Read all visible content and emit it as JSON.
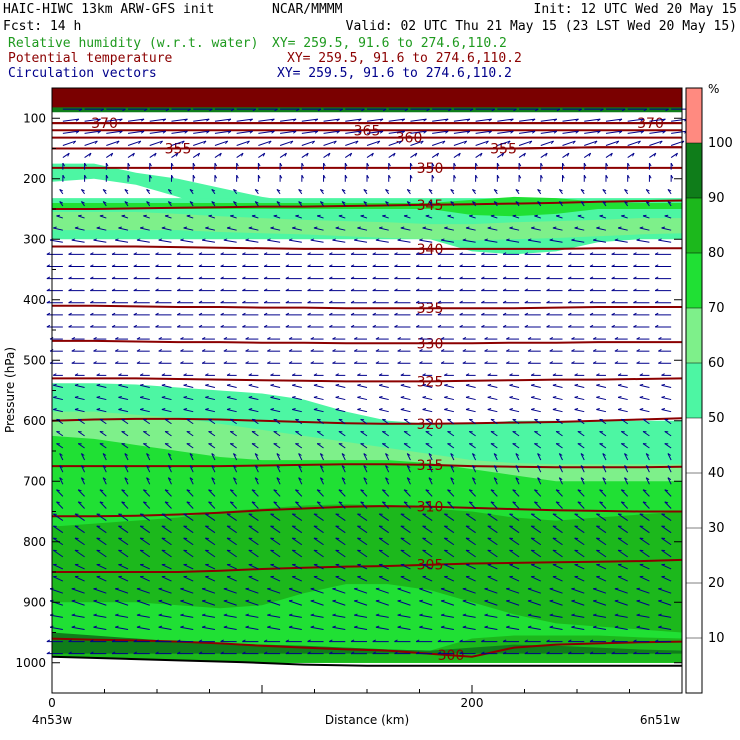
{
  "header": {
    "model": "HAIC-HIWC 13km ARW-GFS init",
    "center": "NCAR/MMMM",
    "init": "Init: 12 UTC Wed 20 May 15",
    "fcst": "Fcst:   14 h",
    "valid": "Valid: 02 UTC Thu 21 May 15 (23 LST Wed 20 May 15)",
    "fields": [
      {
        "name": "Relative humidity (w.r.t. water)",
        "xy": "XY= 259.5, 91.6 to 274.6,110.2",
        "color": "#1e9a1e"
      },
      {
        "name": "Potential temperature",
        "xy": "XY= 259.5, 91.6 to 274.6,110.2",
        "color": "#8b0000"
      },
      {
        "name": "Circulation vectors",
        "xy": "XY= 259.5, 91.6 to 274.6,110.2",
        "color": "#00008b"
      }
    ]
  },
  "chart_data": {
    "type": "cross-section",
    "xlabel": "Distance (km)",
    "ylabel": "Pressure (hPa)",
    "x_range_km": [
      0,
      300
    ],
    "x_ticks": [
      0,
      200
    ],
    "x_end_labels": {
      "left": "4n53w",
      "right": "6n51w"
    },
    "y_range_hpa": [
      50,
      1050
    ],
    "y_ticks": [
      100,
      200,
      300,
      400,
      500,
      600,
      700,
      800,
      900,
      1000
    ],
    "y_scale": "linear-pressure",
    "surface_hpa": [
      990,
      993,
      996,
      999,
      1003,
      1005,
      1005,
      1005,
      1005,
      1005,
      1005
    ],
    "rh_colorbar": {
      "unit": "%",
      "levels": [
        10,
        20,
        30,
        40,
        50,
        60,
        70,
        80,
        90,
        100
      ],
      "bins": [
        {
          "from": 50,
          "to": 60,
          "color": "#4df6a3"
        },
        {
          "from": 60,
          "to": 70,
          "color": "#7ef08a"
        },
        {
          "from": 70,
          "to": 80,
          "color": "#20e034"
        },
        {
          "from": 80,
          "to": 90,
          "color": "#1cb81c"
        },
        {
          "from": 90,
          "to": 100,
          "color": "#0f7d1a"
        },
        {
          "from": 100,
          "to": 110,
          "color": "#ff8a80"
        }
      ]
    },
    "rh_bands": [
      {
        "rh": 55,
        "top": [
          175,
          175,
          190,
          200,
          215,
          230,
          240,
          245,
          250,
          250,
          250,
          250,
          250,
          250,
          250,
          250
        ],
        "bottom": [
          205,
          200,
          210,
          230,
          255,
          270,
          280,
          285,
          290,
          300,
          320,
          325,
          320,
          305,
          300,
          295
        ]
      },
      {
        "rh": 55,
        "top": [
          232,
          232,
          232,
          232,
          232,
          232,
          232,
          232,
          232,
          232,
          232,
          232,
          232,
          232,
          232,
          232
        ],
        "bottom": [
          300,
          300,
          300,
          300,
          300,
          300,
          300,
          300,
          300,
          300,
          300,
          300,
          300,
          300,
          300,
          300
        ]
      },
      {
        "rh": 65,
        "top": [
          255,
          255,
          255,
          258,
          262,
          265,
          268,
          270,
          272,
          275,
          275,
          272,
          270,
          268,
          265,
          265
        ],
        "bottom": [
          285,
          285,
          285,
          285,
          288,
          290,
          292,
          295,
          298,
          300,
          302,
          300,
          298,
          295,
          292,
          290
        ]
      },
      {
        "rh": 75,
        "top": [
          240,
          240,
          240,
          240,
          240,
          240,
          240,
          240,
          240,
          240,
          235,
          230,
          232,
          238,
          240,
          240
        ],
        "bottom": [
          250,
          250,
          250,
          250,
          250,
          250,
          250,
          250,
          250,
          250,
          260,
          262,
          258,
          250,
          250,
          250
        ]
      },
      {
        "rh": 55,
        "top": [
          538,
          538,
          540,
          545,
          550,
          555,
          565,
          585,
          600,
          605,
          605,
          600,
          600,
          600,
          600,
          600
        ],
        "bottom": [
          1000,
          1000,
          1000,
          1000,
          1000,
          1000,
          1000,
          1000,
          1000,
          1000,
          1000,
          1000,
          1000,
          1000,
          1000,
          1000
        ]
      },
      {
        "rh": 65,
        "top": [
          585,
          585,
          590,
          595,
          605,
          615,
          625,
          635,
          645,
          655,
          665,
          670,
          672,
          672,
          672,
          672
        ],
        "bottom": [
          1000,
          1000,
          1000,
          1000,
          1000,
          1000,
          1000,
          1000,
          1000,
          1000,
          1000,
          1000,
          1000,
          1000,
          1000,
          1000
        ]
      },
      {
        "rh": 75,
        "top": [
          625,
          630,
          640,
          650,
          660,
          665,
          665,
          665,
          665,
          670,
          680,
          690,
          700,
          700,
          700,
          700
        ],
        "bottom": [
          1000,
          1000,
          1000,
          1000,
          1000,
          1000,
          1000,
          1000,
          1000,
          1000,
          1000,
          1000,
          1000,
          1000,
          1000,
          1000
        ]
      },
      {
        "rh": 85,
        "top": [
          775,
          770,
          765,
          760,
          750,
          745,
          740,
          738,
          740,
          745,
          750,
          760,
          765,
          760,
          755,
          750
        ],
        "bottom": [
          1000,
          1000,
          1000,
          1000,
          1000,
          1000,
          1000,
          1000,
          1000,
          1000,
          1000,
          1000,
          1000,
          1000,
          1000,
          1000
        ]
      },
      {
        "rh": 75,
        "top": [
          900,
          900,
          900,
          905,
          910,
          905,
          885,
          870,
          870,
          880,
          900,
          920,
          935,
          940,
          945,
          950
        ],
        "bottom": [
          1000,
          1000,
          1000,
          1000,
          1000,
          1000,
          1000,
          1000,
          1000,
          1000,
          1000,
          1000,
          1000,
          1000,
          1000,
          1000
        ]
      },
      {
        "rh": 85,
        "top": [
          965,
          965,
          965,
          965,
          968,
          970,
          972,
          975,
          978,
          980,
          960,
          955,
          955,
          955,
          958,
          960
        ],
        "bottom": [
          1000,
          1000,
          1000,
          1000,
          1000,
          1000,
          1000,
          1000,
          1000,
          1000,
          1000,
          1000,
          1000,
          1000,
          1000,
          1000
        ]
      },
      {
        "rh": 95,
        "top": [
          950,
          955,
          960,
          965,
          968,
          970,
          972,
          975,
          978,
          980,
          975,
          970,
          972,
          975,
          978,
          980
        ],
        "bottom": [
          985,
          985,
          985,
          985,
          985,
          985,
          985,
          985,
          985,
          985,
          985,
          985,
          985,
          985,
          985,
          985
        ]
      },
      {
        "rh": 95,
        "top": [
          50,
          50,
          50,
          50,
          50,
          50,
          50,
          50,
          50,
          50,
          50,
          50,
          50,
          50,
          50,
          50
        ],
        "bottom": [
          90,
          90,
          90,
          90,
          90,
          90,
          90,
          90,
          90,
          90,
          90,
          90,
          90,
          90,
          90,
          90
        ]
      }
    ],
    "theta_contours": [
      {
        "value": 300,
        "p": [
          960,
          962,
          963,
          965,
          968,
          972,
          975,
          978,
          980,
          985,
          990,
          975,
          970,
          968,
          966,
          965
        ],
        "label_x": 190
      },
      {
        "value": 305,
        "p": [
          850,
          850,
          850,
          850,
          848,
          845,
          843,
          841,
          840,
          838,
          836,
          835,
          834,
          833,
          832,
          830
        ],
        "label_x": 180
      },
      {
        "value": 310,
        "p": [
          758,
          758,
          757,
          755,
          752,
          748,
          745,
          742,
          741,
          742,
          744,
          746,
          748,
          749,
          750,
          750
        ],
        "label_x": 180
      },
      {
        "value": 315,
        "p": [
          675,
          675,
          675,
          675,
          675,
          674,
          673,
          672,
          672,
          673,
          675,
          676,
          677,
          677,
          677,
          676
        ],
        "label_x": 180
      },
      {
        "value": 320,
        "p": [
          600,
          598,
          597,
          597,
          598,
          600,
          602,
          604,
          605,
          605,
          604,
          603,
          602,
          600,
          598,
          596
        ],
        "label_x": 180
      },
      {
        "value": 325,
        "p": [
          530,
          530,
          530,
          531,
          532,
          533,
          534,
          535,
          535,
          535,
          534,
          533,
          532,
          532,
          531,
          530
        ],
        "label_x": 180
      },
      {
        "value": 330,
        "p": [
          468,
          468,
          469,
          470,
          470,
          471,
          471,
          472,
          472,
          472,
          472,
          471,
          471,
          470,
          470,
          470
        ],
        "label_x": 180
      },
      {
        "value": 335,
        "p": [
          410,
          410,
          411,
          412,
          412,
          413,
          413,
          414,
          414,
          414,
          414,
          414,
          413,
          412,
          412,
          412
        ],
        "label_x": 180
      },
      {
        "value": 340,
        "p": [
          312,
          312,
          312,
          313,
          314,
          315,
          316,
          316,
          316,
          316,
          316,
          316,
          316,
          315,
          315,
          315
        ],
        "label_x": 180
      },
      {
        "value": 345,
        "p": [
          250,
          250,
          249,
          248,
          247,
          246,
          246,
          245,
          244,
          243,
          242,
          241,
          240,
          238,
          237,
          236
        ],
        "label_x": 180
      },
      {
        "value": 350,
        "p": [
          182,
          182,
          182,
          182,
          182,
          182,
          182,
          182,
          182,
          182,
          182,
          182,
          182,
          182,
          182,
          182
        ],
        "label_x": 180
      },
      {
        "value": 355,
        "p": [
          150,
          150,
          150,
          150,
          150,
          150,
          150,
          150,
          150,
          150,
          150,
          150,
          149,
          148,
          148,
          148
        ],
        "label_x": 60
      },
      {
        "value": 355,
        "p": [
          150,
          150,
          150,
          150,
          150,
          150,
          150,
          150,
          150,
          150,
          150,
          150,
          149,
          148,
          148,
          148
        ],
        "label_x": 215
      },
      {
        "value": 360,
        "p": [
          132,
          132,
          132,
          132,
          132,
          132,
          132,
          132,
          132,
          132,
          132,
          132,
          132,
          132,
          132,
          132
        ],
        "label_x": 170
      },
      {
        "value": 365,
        "p": [
          120,
          120,
          120,
          120,
          120,
          120,
          120,
          120,
          120,
          120,
          120,
          120,
          120,
          120,
          120,
          120
        ],
        "label_x": 150
      },
      {
        "value": 370,
        "p": [
          108,
          108,
          108,
          108,
          108,
          108,
          108,
          108,
          108,
          108,
          108,
          108,
          108,
          108,
          108,
          108
        ],
        "label_x": 25
      },
      {
        "value": 370,
        "p": [
          108,
          108,
          108,
          108,
          108,
          108,
          108,
          108,
          108,
          108,
          108,
          108,
          108,
          108,
          108,
          108
        ],
        "label_x": 285
      }
    ],
    "vectors": {
      "color": "#00008b",
      "note": "wind arrows show flow direction",
      "levels_hpa": [
        85,
        105,
        125,
        145,
        165,
        185,
        205,
        225,
        245,
        265,
        285,
        305,
        325,
        345,
        365,
        385,
        405,
        425,
        445,
        465,
        485,
        505,
        525,
        545,
        565,
        585,
        605,
        625,
        645,
        665,
        685,
        705,
        725,
        745,
        765,
        785,
        805,
        825,
        845,
        865,
        885,
        905,
        925,
        945,
        965,
        985
      ],
      "u_by_level": [
        6,
        5,
        5,
        4,
        2,
        0,
        0,
        -1,
        -1,
        -2,
        -3,
        -4,
        -5,
        -5,
        -5,
        -5,
        -5,
        -5,
        -5,
        -4,
        -4,
        -4,
        -3,
        -3,
        -3,
        -3,
        -2,
        -2,
        -2,
        -1,
        -1,
        -1,
        -2,
        -2,
        -3,
        -3,
        -3,
        -3,
        -3,
        -3,
        -4,
        -4,
        -4,
        -4,
        -5,
        -5
      ],
      "w_by_level": [
        0,
        1,
        1,
        2,
        2,
        3,
        3,
        2,
        2,
        1,
        1,
        1,
        0,
        0,
        0,
        0,
        0,
        0,
        0,
        0,
        0,
        0,
        0,
        1,
        1,
        1,
        2,
        2,
        2,
        3,
        3,
        3,
        3,
        3,
        3,
        3,
        3,
        3,
        2,
        2,
        2,
        2,
        1,
        1,
        0,
        0
      ]
    }
  }
}
